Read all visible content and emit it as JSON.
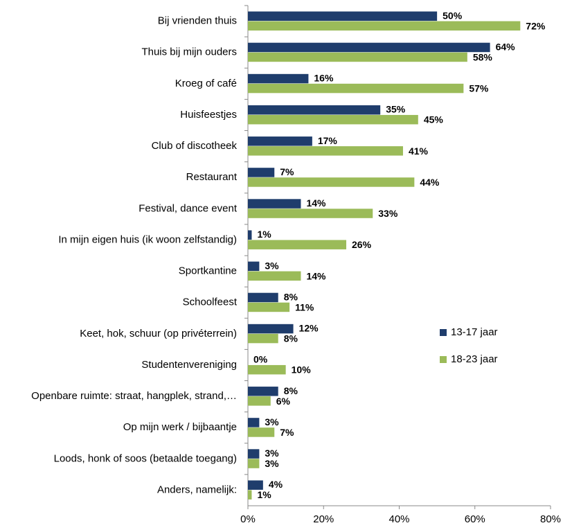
{
  "chart_data": {
    "type": "bar",
    "orientation": "horizontal",
    "legend": "right",
    "categories": [
      "Bij vrienden thuis",
      "Thuis bij mijn ouders",
      "Kroeg of café",
      "Huisfeestjes",
      "Club of discotheek",
      "Restaurant",
      "Festival, dance event",
      "In mijn eigen huis (ik woon zelfstandig)",
      "Sportkantine",
      "Schoolfeest",
      "Keet, hok, schuur (op privéterrein)",
      "Studentenvereniging",
      "Openbare ruimte: straat, hangplek, strand,…",
      "Op mijn werk / bijbaantje",
      "Loods, honk of soos (betaalde toegang)",
      "Anders, namelijk:"
    ],
    "series": [
      {
        "name": "13-17 jaar",
        "color": "#1f3d6c",
        "values": [
          50,
          64,
          16,
          35,
          17,
          7,
          14,
          1,
          3,
          8,
          12,
          0,
          8,
          3,
          3,
          4
        ],
        "value_labels": [
          "50%",
          "64%",
          "16%",
          "35%",
          "17%",
          "7%",
          "14%",
          "1%",
          "3%",
          "8%",
          "12%",
          "0%",
          "8%",
          "3%",
          "3%",
          "4%"
        ]
      },
      {
        "name": "18-23 jaar",
        "color": "#9bbb59",
        "values": [
          72,
          58,
          57,
          45,
          41,
          44,
          33,
          26,
          14,
          11,
          8,
          10,
          6,
          7,
          3,
          1
        ],
        "value_labels": [
          "72%",
          "58%",
          "57%",
          "45%",
          "41%",
          "44%",
          "33%",
          "26%",
          "14%",
          "11%",
          "8%",
          "10%",
          "6%",
          "7%",
          "3%",
          "1%"
        ]
      }
    ],
    "xlim": [
      0,
      80
    ],
    "xticks": [
      {
        "value": 0,
        "label": "0%"
      },
      {
        "value": 20,
        "label": "20%"
      },
      {
        "value": 40,
        "label": "40%"
      },
      {
        "value": 60,
        "label": "60%"
      },
      {
        "value": 80,
        "label": "80%"
      }
    ]
  }
}
